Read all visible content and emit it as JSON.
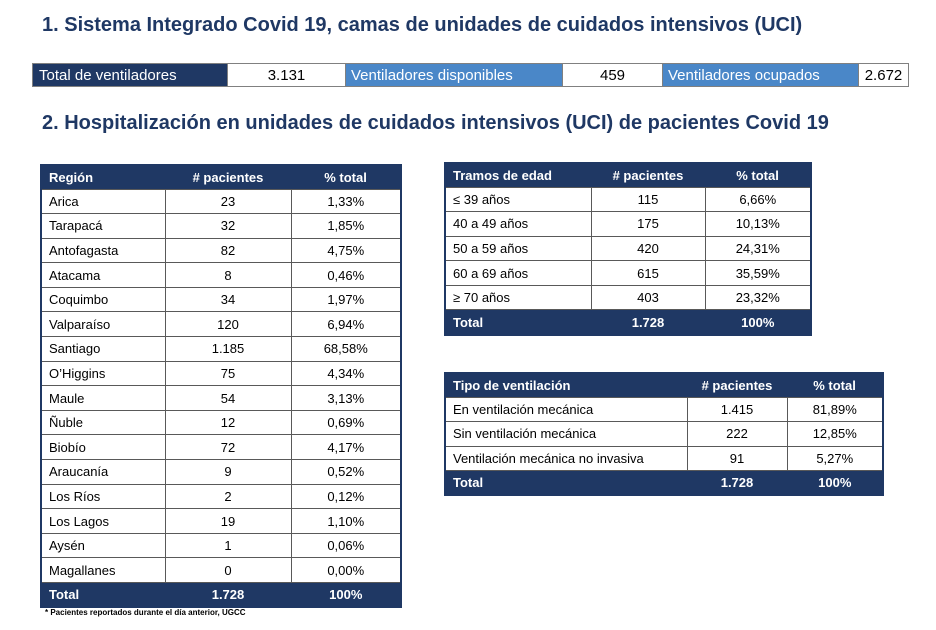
{
  "section1": {
    "title": "1. Sistema Integrado Covid 19, camas de unidades de cuidados intensivos (UCI)",
    "total_label": "Total de ventiladores",
    "total_value": "3.131",
    "available_label": "Ventiladores disponibles",
    "available_value": "459",
    "occupied_label": "Ventiladores ocupados",
    "occupied_value": "2.672"
  },
  "section2": {
    "title": "2. Hospitalización en unidades de cuidados intensivos (UCI) de pacientes Covid 19"
  },
  "region_table": {
    "headers": [
      "Región",
      "# pacientes",
      "% total"
    ],
    "rows": [
      [
        "Arica",
        "23",
        "1,33%"
      ],
      [
        "Tarapacá",
        "32",
        "1,85%"
      ],
      [
        "Antofagasta",
        "82",
        "4,75%"
      ],
      [
        "Atacama",
        "8",
        "0,46%"
      ],
      [
        "Coquimbo",
        "34",
        "1,97%"
      ],
      [
        "Valparaíso",
        "120",
        "6,94%"
      ],
      [
        "Santiago",
        "1.185",
        "68,58%"
      ],
      [
        "O’Higgins",
        "75",
        "4,34%"
      ],
      [
        "Maule",
        "54",
        "3,13%"
      ],
      [
        "Ñuble",
        "12",
        "0,69%"
      ],
      [
        "Biobío",
        "72",
        "4,17%"
      ],
      [
        "Araucanía",
        "9",
        "0,52%"
      ],
      [
        "Los Ríos",
        "2",
        "0,12%"
      ],
      [
        "Los Lagos",
        "19",
        "1,10%"
      ],
      [
        "Aysén",
        "1",
        "0,06%"
      ],
      [
        "Magallanes",
        "0",
        "0,00%"
      ]
    ],
    "total": [
      "Total",
      "1.728",
      "100%"
    ],
    "footnote": "* Pacientes reportados durante el día anterior, UGCC"
  },
  "age_table": {
    "headers": [
      "Tramos de edad",
      "# pacientes",
      "% total"
    ],
    "rows": [
      [
        "≤ 39 años",
        "115",
        "6,66%"
      ],
      [
        "40 a 49 años",
        "175",
        "10,13%"
      ],
      [
        "50 a 59 años",
        "420",
        "24,31%"
      ],
      [
        "60 a 69 años",
        "615",
        "35,59%"
      ],
      [
        "≥ 70 años",
        "403",
        "23,32%"
      ]
    ],
    "total": [
      "Total",
      "1.728",
      "100%"
    ]
  },
  "vent_table": {
    "headers": [
      "Tipo de ventilación",
      "# pacientes",
      "% total"
    ],
    "rows": [
      [
        "En ventilación mecánica",
        "1.415",
        "81,89%"
      ],
      [
        "Sin ventilación mecánica",
        "222",
        "12,85%"
      ],
      [
        "Ventilación mecánica no invasiva",
        "91",
        "5,27%"
      ]
    ],
    "total": [
      "Total",
      "1.728",
      "100%"
    ]
  },
  "colors": {
    "navy": "#1f3864",
    "blue": "#4a87c8"
  }
}
